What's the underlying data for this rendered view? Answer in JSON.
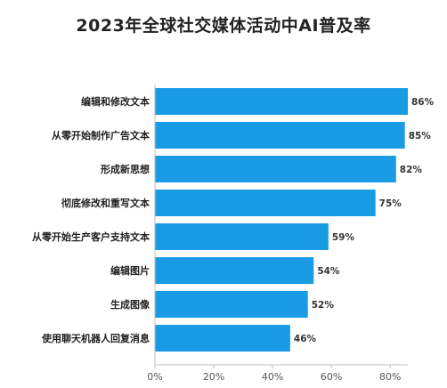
{
  "chart_data": {
    "type": "bar",
    "orientation": "horizontal",
    "title": "2023年全球社交媒体活动中AI普及率",
    "categories": [
      "编辑和修改文本",
      "从零开始制作广告文本",
      "形成新思想",
      "彻底修改和重写文本",
      "从零开始生产客户支持文本",
      "编辑图片",
      "生成图像",
      "使用聊天机器人回复消息"
    ],
    "values": [
      86,
      85,
      82,
      75,
      59,
      54,
      52,
      46
    ],
    "value_labels": [
      "86%",
      "85%",
      "82%",
      "75%",
      "59%",
      "54%",
      "52%",
      "46%"
    ],
    "x_ticks": [
      0,
      20,
      40,
      60,
      80
    ],
    "x_tick_labels": [
      "0%",
      "20%",
      "40%",
      "60%",
      "80%"
    ],
    "xlim": [
      0,
      86
    ],
    "grid": false,
    "legend": "none",
    "bar_color": "#1a9be6"
  }
}
